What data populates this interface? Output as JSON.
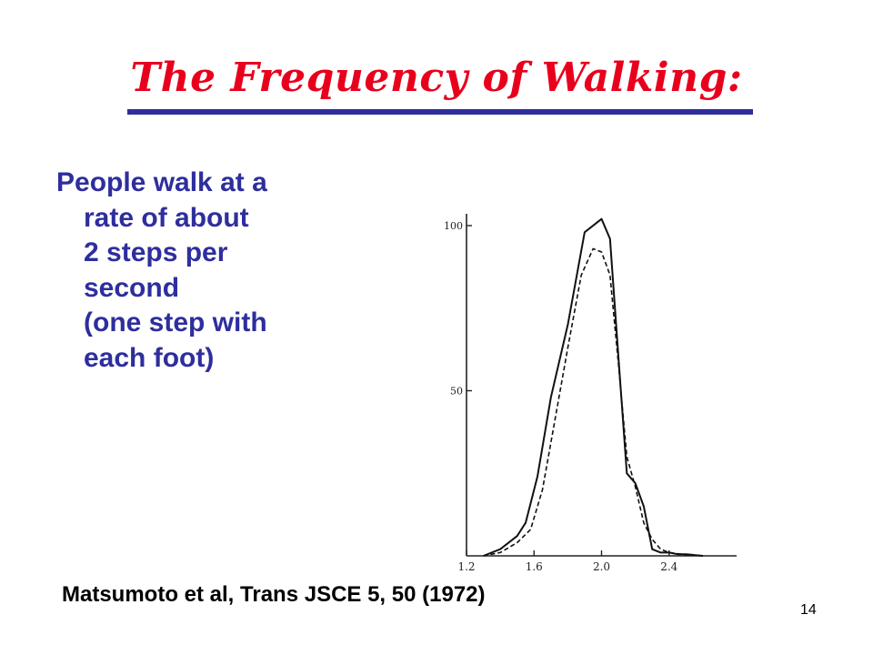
{
  "slide": {
    "title": "The Frequency of Walking:",
    "bullet_lines": [
      "People walk at a",
      "rate of about",
      "2 steps per",
      "second",
      "(one step with",
      "each foot)"
    ],
    "citation": "Matsumoto et al, Trans JSCE 5, 50 (1972)",
    "page_number": "14",
    "colors": {
      "title": "#e8001c",
      "body": "#2e2e9e",
      "rule": "#2e2e9e"
    }
  },
  "chart_data": {
    "type": "line",
    "xlim": [
      1.2,
      2.8
    ],
    "ylim": [
      0,
      100
    ],
    "x_ticks": [
      1.2,
      1.6,
      2.0,
      2.4
    ],
    "x_tick_labels": [
      "1.2",
      "1.6",
      "2.0",
      "2.4"
    ],
    "y_ticks": [
      50,
      100
    ],
    "y_tick_labels": [
      "50",
      "100"
    ],
    "series": [
      {
        "style": "solid",
        "x": [
          1.3,
          1.4,
          1.5,
          1.55,
          1.62,
          1.7,
          1.8,
          1.9,
          2.0,
          2.05,
          2.1,
          2.15,
          2.2,
          2.25,
          2.3,
          2.35,
          2.4,
          2.45,
          2.5,
          2.6
        ],
        "y": [
          0,
          2,
          6,
          10,
          24,
          48,
          70,
          98,
          102,
          96,
          60,
          25,
          22,
          15,
          2,
          1,
          1,
          0.5,
          0.5,
          0
        ]
      },
      {
        "style": "dashed",
        "x": [
          1.3,
          1.4,
          1.5,
          1.58,
          1.65,
          1.72,
          1.8,
          1.88,
          1.95,
          2.0,
          2.05,
          2.1,
          2.15,
          2.2,
          2.25,
          2.3,
          2.35,
          2.4,
          2.5,
          2.6
        ],
        "y": [
          0,
          1,
          4,
          8,
          20,
          40,
          63,
          85,
          93,
          92,
          85,
          58,
          30,
          21,
          10,
          5,
          2,
          1,
          0.3,
          0
        ]
      }
    ]
  }
}
